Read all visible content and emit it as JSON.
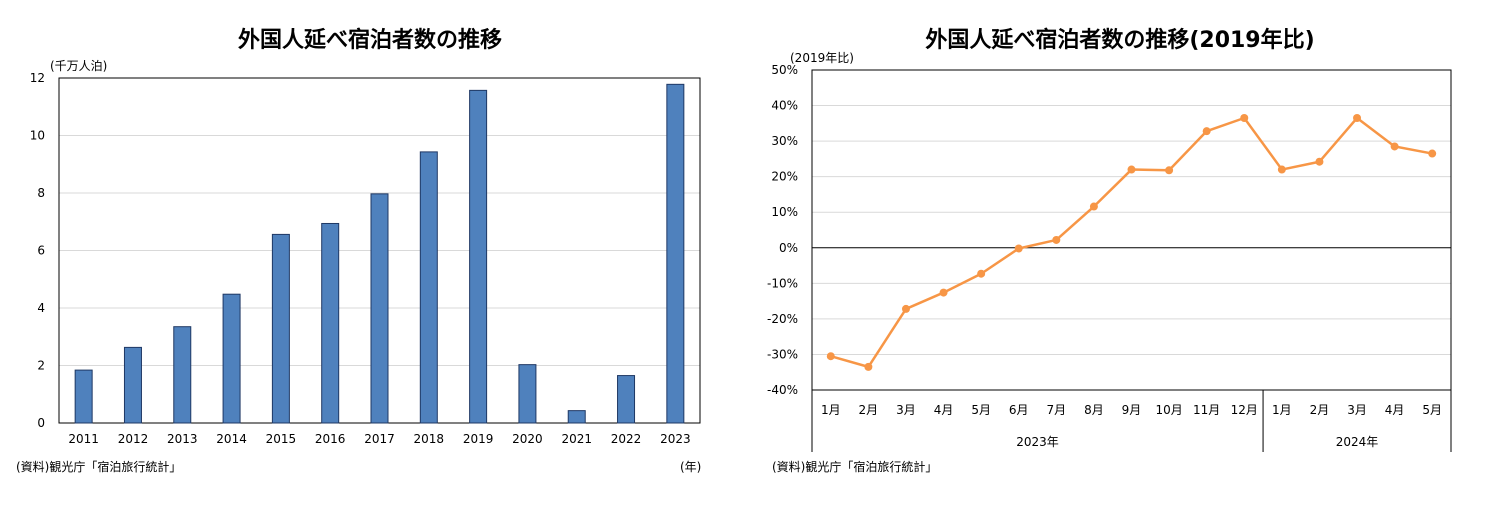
{
  "chart_data": [
    {
      "type": "bar",
      "title": "外国人延べ宿泊者数の推移",
      "unit_label": "(千万人泊)",
      "x_unit_label": "(年)",
      "source": "(資料)観光庁「宿泊旅行統計」",
      "categories": [
        "2011",
        "2012",
        "2013",
        "2014",
        "2015",
        "2016",
        "2017",
        "2018",
        "2019",
        "2020",
        "2021",
        "2022",
        "2023"
      ],
      "values": [
        1.84,
        2.63,
        3.35,
        4.48,
        6.56,
        6.94,
        7.97,
        9.43,
        11.57,
        2.03,
        0.43,
        1.65,
        11.78
      ],
      "ylim": [
        0,
        12
      ],
      "yticks": [
        "0",
        "2",
        "4",
        "6",
        "8",
        "10",
        "12"
      ],
      "color": "#4f81bd",
      "grid": true
    },
    {
      "type": "line",
      "title": "外国人延べ宿泊者数の推移(2019年比)",
      "unit_label": "(2019年比)",
      "source": "(資料)観光庁「宿泊旅行統計」",
      "categories": [
        "1月",
        "2月",
        "3月",
        "4月",
        "5月",
        "6月",
        "7月",
        "8月",
        "9月",
        "10月",
        "11月",
        "12月",
        "1月",
        "2月",
        "3月",
        "4月",
        "5月"
      ],
      "groups": [
        {
          "label": "2023年",
          "count": 12
        },
        {
          "label": "2024年",
          "count": 5
        }
      ],
      "values": [
        -30.5,
        -33.5,
        -17.2,
        -12.6,
        -7.3,
        -0.2,
        2.2,
        11.6,
        22.0,
        21.8,
        32.8,
        36.5,
        22.0,
        24.2,
        36.5,
        28.5,
        26.5
      ],
      "ylim": [
        -40,
        50
      ],
      "yticks": [
        "-40%",
        "-30%",
        "-20%",
        "-10%",
        "0%",
        "10%",
        "20%",
        "30%",
        "40%",
        "50%"
      ],
      "color": "#f79646",
      "grid": true
    }
  ]
}
